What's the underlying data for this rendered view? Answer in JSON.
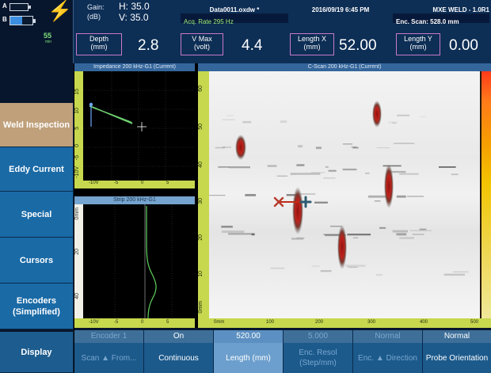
{
  "status": {
    "channel_a": "A",
    "channel_b": "B",
    "battery_percent_label": "55",
    "battery_unit": "min",
    "battery_fill": 0.55
  },
  "header": {
    "gain_label": "Gain:",
    "gain_unit": "(dB)",
    "gain_h": "H: 35.0",
    "gain_v": "V: 35.0",
    "file_name": "Data0011.oxdw *",
    "acq_rate": "Acq. Rate 295  Hz",
    "datetime": "2016/09/19 6:45 PM",
    "app_title": "MXE WELD - 1.0R1",
    "enc_scan": "Enc. Scan:  528.0 mm",
    "depth_label": "Depth",
    "depth_unit": "(mm)",
    "depth_value": "2.8",
    "vmax_label": "V Max",
    "vmax_unit": "(volt)",
    "vmax_value": "4.4",
    "lengthx_label": "Length X",
    "lengthx_unit": "(mm)",
    "lengthx_value": "52.00",
    "lengthy_label": "Length Y",
    "lengthy_unit": "(mm)",
    "lengthy_value": "0.00"
  },
  "menu": [
    {
      "label": "Weld Inspection",
      "active": true
    },
    {
      "label": "Eddy Current"
    },
    {
      "label": "Special"
    },
    {
      "label": "Cursors"
    },
    {
      "label": "Encoders (Simplified)"
    },
    {
      "label": "Display"
    }
  ],
  "impedance": {
    "title": "Impedance 200 kHz-G1 (Current)",
    "y_ticks": [
      "15",
      "10",
      "5",
      "0",
      "-5",
      "-10V"
    ],
    "x_ticks": [
      "-10V",
      "-5",
      "0",
      "5"
    ]
  },
  "strip": {
    "title": "Strip 200 kHz-G1",
    "y_ticks": [
      "0mm",
      "20",
      "40"
    ],
    "x_ticks": [
      "-10V",
      "-5",
      "0",
      "5"
    ]
  },
  "cscan": {
    "title": "C-Scan 200 kHz-G1 (Current)",
    "y_ticks": [
      "60",
      "50",
      "40",
      "30",
      "20",
      "10",
      "0mm"
    ],
    "x_ticks": [
      "0mm",
      "100",
      "200",
      "300",
      "400",
      "500"
    ],
    "ref_cursor_icon": "x-cursor-icon",
    "meas_cursor_icon": "plus-cursor-icon"
  },
  "bottom": [
    {
      "top": "Encoder 1",
      "bottom": "Scan ▲ From...",
      "dim": true
    },
    {
      "top": "On",
      "bottom": "Continuous",
      "dim": false
    },
    {
      "top": "520.00",
      "bottom": "Length (mm)",
      "dim": false,
      "hl": true
    },
    {
      "top": "5.000",
      "bottom": "Enc. Resol (Step/mm)",
      "dim": true
    },
    {
      "top": "Normal",
      "bottom": "Enc. ▲ Direction",
      "dim": true
    },
    {
      "top": "Normal",
      "bottom": "Probe Orientation",
      "dim": false
    }
  ],
  "colors": {
    "header_bg": "#0d2e55",
    "menu_bg": "#1a6aa6",
    "menu_active": "#bfa07a",
    "ruler": "#c7d84e",
    "trace": "#5fd35f",
    "indication": "#c0201a"
  }
}
